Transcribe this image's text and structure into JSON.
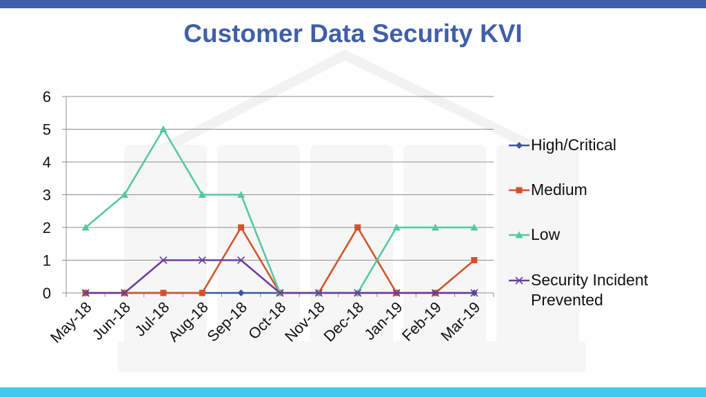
{
  "title": "Customer Data Security KVI",
  "colors": {
    "top_bar": "#3f5faa",
    "bottom_bar": "#41c8ee",
    "title": "#3f5faa",
    "grid": "#8c8c8c"
  },
  "chart_data": {
    "type": "line",
    "title": "Customer Data Security KVI",
    "xlabel": "",
    "ylabel": "",
    "categories": [
      "May-18",
      "Jun-18",
      "Jul-18",
      "Aug-18",
      "Sep-18",
      "Oct-18",
      "Nov-18",
      "Dec-18",
      "Jan-19",
      "Feb-19",
      "Mar-19"
    ],
    "ylim": [
      0,
      6
    ],
    "yticks": [
      0,
      1,
      2,
      3,
      4,
      5,
      6
    ],
    "grid": "horizontal",
    "legend_position": "right",
    "series": [
      {
        "name": "High/Critical",
        "color": "#3b55a3",
        "marker": "diamond",
        "values": [
          0,
          0,
          0,
          0,
          0,
          0,
          0,
          0,
          0,
          0,
          0
        ]
      },
      {
        "name": "Medium",
        "color": "#d0532b",
        "marker": "square",
        "values": [
          0,
          0,
          0,
          0,
          2,
          0,
          0,
          2,
          0,
          0,
          1
        ]
      },
      {
        "name": "Low",
        "color": "#56c8a0",
        "marker": "triangle",
        "values": [
          2,
          3,
          5,
          3,
          3,
          0,
          0,
          0,
          2,
          2,
          2
        ]
      },
      {
        "name": "Security Incident Prevented",
        "legend_lines": [
          "Security Incident",
          "Prevented"
        ],
        "color": "#6a3d9a",
        "marker": "x",
        "values": [
          0,
          0,
          1,
          1,
          1,
          0,
          0,
          0,
          0,
          0,
          0
        ]
      }
    ]
  }
}
